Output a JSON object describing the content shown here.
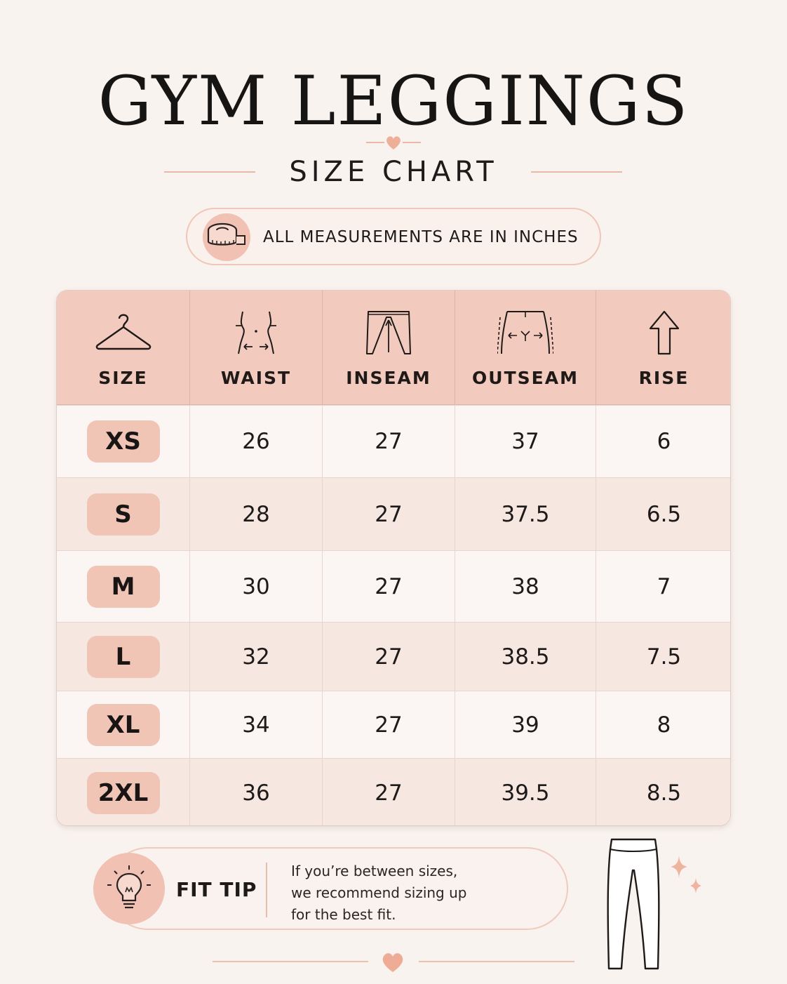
{
  "header": {
    "title": "GYM LEGGINGS",
    "subtitle": "SIZE CHART",
    "units_note": "ALL MEASUREMENTS ARE IN INCHES"
  },
  "icons": {
    "units": "measuring-tape-icon",
    "size": "hanger-icon",
    "waist": "waist-measure-icon",
    "inseam": "inseam-icon",
    "outseam": "outseam-icon",
    "rise": "arrow-up-icon",
    "tip": "lightbulb-icon",
    "illustration": "leggings-icon"
  },
  "colors": {
    "background": "#f9f3ef",
    "header_fill": "#f2cbbe",
    "accent": "#f1c5b6",
    "row_alt": "#f6e7e1"
  },
  "table": {
    "columns": [
      "SIZE",
      "WAIST",
      "INSEAM",
      "OUTSEAM",
      "RISE"
    ],
    "rows": [
      {
        "size": "XS",
        "waist": "26",
        "inseam": "27",
        "outseam": "37",
        "rise": "6"
      },
      {
        "size": "S",
        "waist": "28",
        "inseam": "27",
        "outseam": "37.5",
        "rise": "6.5"
      },
      {
        "size": "M",
        "waist": "30",
        "inseam": "27",
        "outseam": "38",
        "rise": "7"
      },
      {
        "size": "L",
        "waist": "32",
        "inseam": "27",
        "outseam": "38.5",
        "rise": "7.5"
      },
      {
        "size": "XL",
        "waist": "34",
        "inseam": "27",
        "outseam": "39",
        "rise": "8"
      },
      {
        "size": "2XL",
        "waist": "36",
        "inseam": "27",
        "outseam": "39.5",
        "rise": "8.5"
      }
    ]
  },
  "fit_tip": {
    "label": "FIT TIP",
    "lines": [
      "If you’re between sizes,",
      "we recommend sizing up",
      "for the best fit."
    ]
  }
}
